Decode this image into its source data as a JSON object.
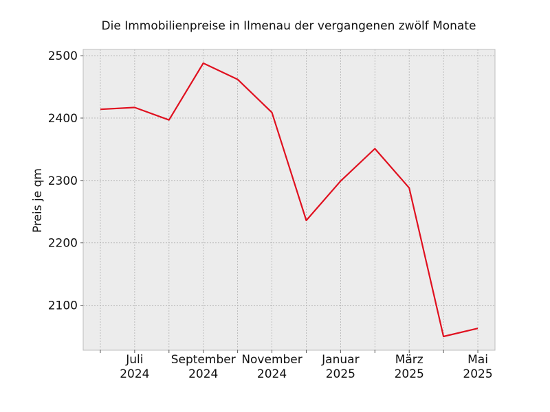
{
  "chart_data": {
    "type": "line",
    "title": "Die Immobilienpreise in Ilmenau der vergangenen zwölf Monate",
    "xlabel": "",
    "ylabel": "Preis je qm",
    "x": [
      "2024-06",
      "2024-07",
      "2024-08",
      "2024-09",
      "2024-10",
      "2024-11",
      "2024-12",
      "2025-01",
      "2025-02",
      "2025-03",
      "2025-04",
      "2025-05"
    ],
    "series": [
      {
        "values": [
          2414,
          2417,
          2397,
          2488,
          2462,
          2409,
          2236,
          2299,
          2351,
          2288,
          2050,
          2063
        ]
      }
    ],
    "ylim": [
      2028,
      2510
    ],
    "yticks": [
      2100,
      2200,
      2300,
      2400,
      2500
    ],
    "xticks": [
      {
        "month": "2024-07",
        "line1": "Juli",
        "line2": "2024"
      },
      {
        "month": "2024-09",
        "line1": "September",
        "line2": "2024"
      },
      {
        "month": "2024-11",
        "line1": "November",
        "line2": "2024"
      },
      {
        "month": "2025-01",
        "line1": "Januar",
        "line2": "2025"
      },
      {
        "month": "2025-03",
        "line1": "März",
        "line2": "2025"
      },
      {
        "month": "2025-05",
        "line1": "Mai",
        "line2": "2025"
      }
    ],
    "grid": true,
    "colors": {
      "line": "#e0101f",
      "plot_bg": "#ececec",
      "grid": "#b0b0b0",
      "frame": "#bcbcbc"
    }
  }
}
